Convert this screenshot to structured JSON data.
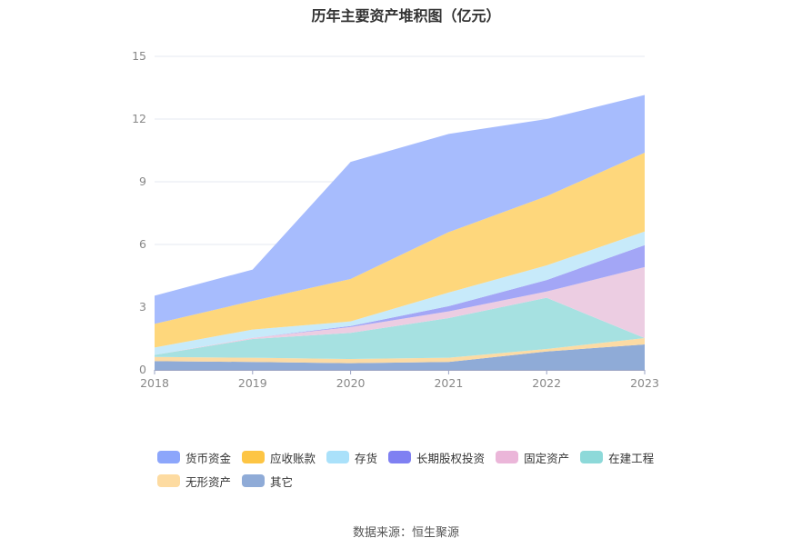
{
  "title": "历年主要资产堆积图（亿元）",
  "source": "数据来源：恒生聚源",
  "chart_data": {
    "type": "area",
    "stacked": true,
    "title": "历年主要资产堆积图（亿元）",
    "xlabel": "",
    "ylabel": "",
    "x": [
      "2018",
      "2019",
      "2020",
      "2021",
      "2022",
      "2023"
    ],
    "ylim": [
      0,
      15
    ],
    "yticks": [
      0,
      3,
      6,
      9,
      12,
      15
    ],
    "grid": true,
    "legend_position": "bottom",
    "series": [
      {
        "name": "其它",
        "color": "#8fabd7",
        "values": [
          0.42,
          0.38,
          0.32,
          0.38,
          0.88,
          1.22
        ]
      },
      {
        "name": "无形资产",
        "color": "#fcdba4",
        "values": [
          0.2,
          0.2,
          0.2,
          0.2,
          0.12,
          0.3
        ]
      },
      {
        "name": "在建工程",
        "color": "#a6e1e1",
        "values": [
          0.1,
          0.9,
          1.25,
          1.9,
          2.45,
          0.0
        ]
      },
      {
        "name": "固定资产",
        "color": "#eccde2",
        "values": [
          0.0,
          0.05,
          0.28,
          0.32,
          0.3,
          3.4
        ]
      },
      {
        "name": "长期股权投资",
        "color": "#a3a6f6",
        "values": [
          0.0,
          0.0,
          0.05,
          0.25,
          0.55,
          1.05
        ]
      },
      {
        "name": "存货",
        "color": "#c7eafa",
        "values": [
          0.35,
          0.4,
          0.22,
          0.65,
          0.7,
          0.65
        ]
      },
      {
        "name": "应收账款",
        "color": "#fed77c",
        "values": [
          1.13,
          1.37,
          2.03,
          2.89,
          3.31,
          3.77
        ]
      },
      {
        "name": "货币资金",
        "color": "#a7bcfd",
        "values": [
          1.35,
          1.5,
          5.6,
          4.7,
          3.69,
          2.76
        ]
      }
    ],
    "legend_order": [
      "货币资金",
      "应收账款",
      "存货",
      "长期股权投资",
      "固定资产",
      "在建工程",
      "无形资产",
      "其它"
    ],
    "legend_colors": {
      "货币资金": "#8ca6fb",
      "应收账款": "#fdc544",
      "存货": "#aae1fa",
      "长期股权投资": "#7f80f2",
      "固定资产": "#ebb6d9",
      "在建工程": "#8dd9d9",
      "无形资产": "#fddba1",
      "其它": "#8fabd7"
    }
  }
}
